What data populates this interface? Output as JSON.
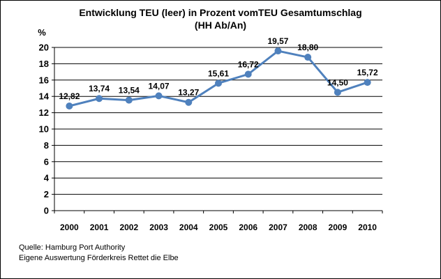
{
  "chart_data": {
    "type": "line",
    "title_lines": [
      "Entwicklung TEU (leer) in Prozent vomTEU Gesamtumschlag",
      "(HH Ab/An)"
    ],
    "ylabel": "%",
    "xlabel": "",
    "categories": [
      "2000",
      "2001",
      "2002",
      "2003",
      "2004",
      "2005",
      "2006",
      "2007",
      "2008",
      "2009",
      "2010"
    ],
    "series": [
      {
        "values": [
          12.82,
          13.74,
          13.54,
          14.07,
          13.27,
          15.61,
          16.72,
          19.57,
          18.8,
          14.5,
          15.72
        ],
        "labels": [
          "12,82",
          "13,74",
          "13,54",
          "14,07",
          "13,27",
          "15,61",
          "16,72",
          "19,57",
          "18,80",
          "14,50",
          "15,72"
        ],
        "color": "#4F81BD"
      }
    ],
    "yticks": [
      0,
      2,
      4,
      6,
      8,
      10,
      12,
      14,
      16,
      18,
      20
    ],
    "ylim": [
      0,
      20
    ],
    "grid": true
  },
  "source_lines": [
    "Quelle: Hamburg Port Authority",
    "Eigene Auswertung Förderkreis Rettet die Elbe"
  ]
}
